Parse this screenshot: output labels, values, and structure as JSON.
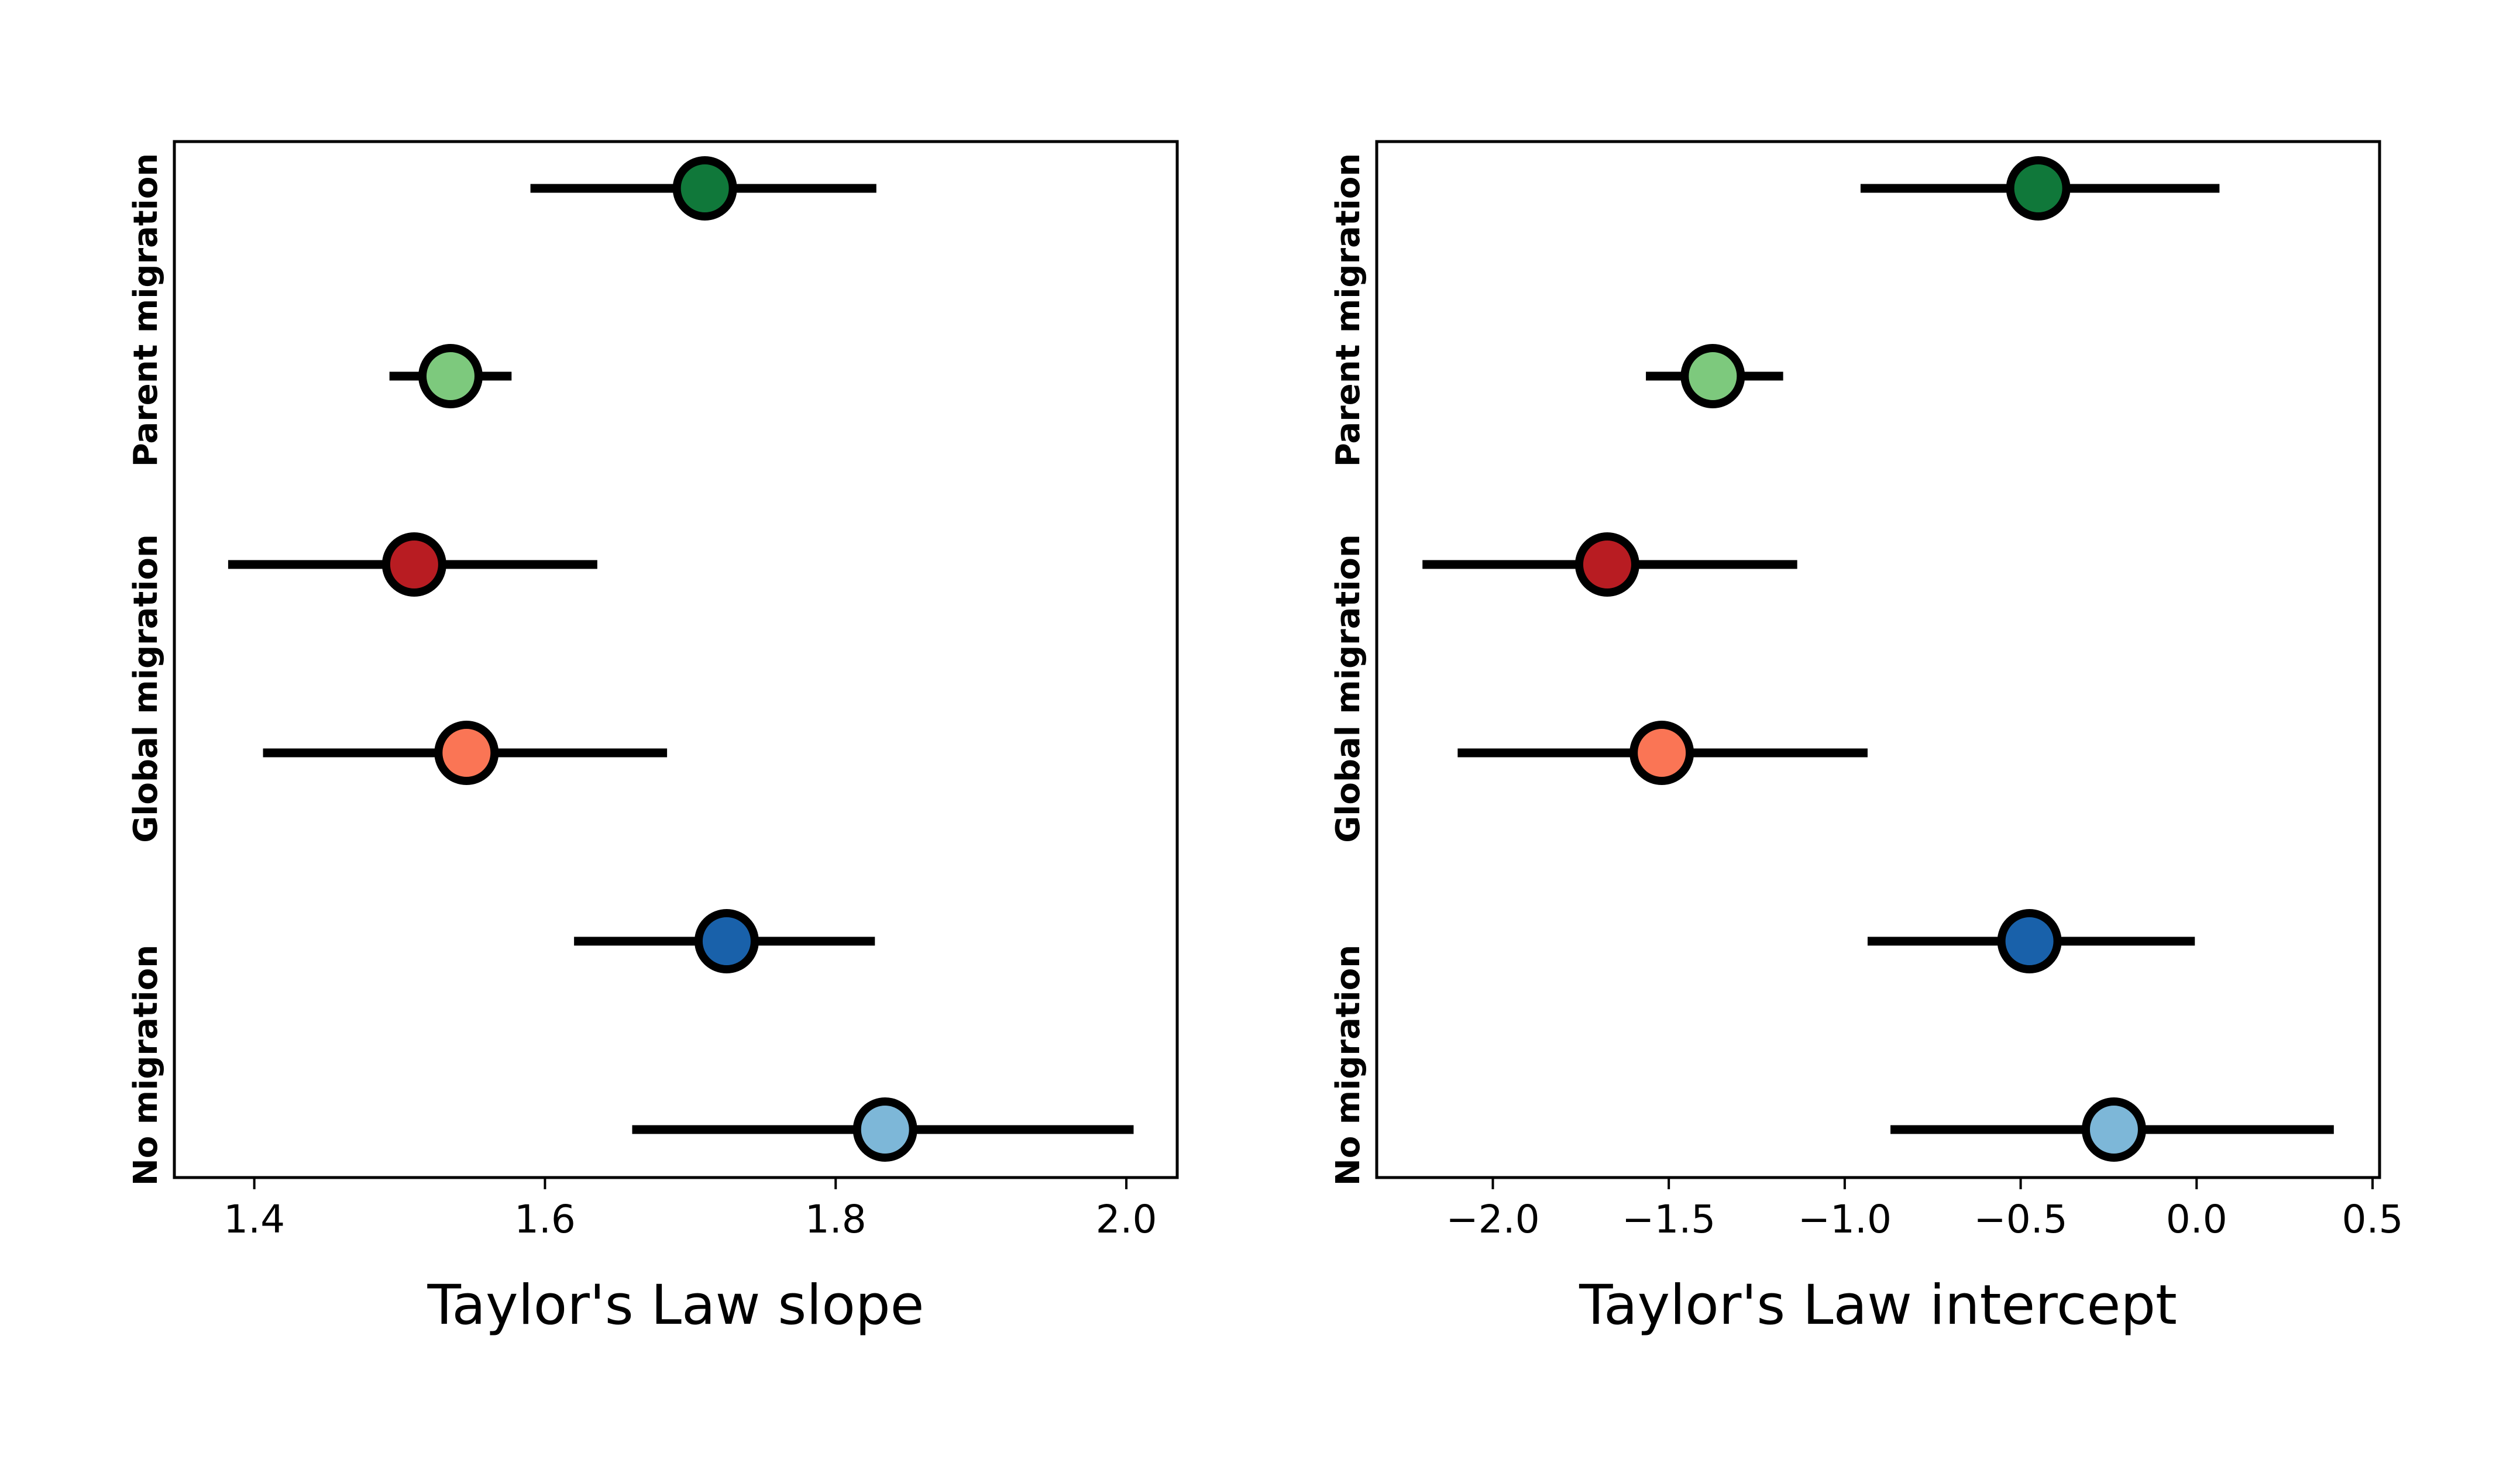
{
  "chart_data": [
    {
      "type": "errorbar",
      "xlabel": "Taylor's Law slope",
      "xlim": [
        1.345,
        2.035
      ],
      "xticks": [
        1.4,
        1.6,
        1.8,
        2.0
      ],
      "xtick_labels": [
        "1.4",
        "1.6",
        "1.8",
        "2.0"
      ],
      "group_labels": [
        "Parent migration",
        "Global migration",
        "No migration"
      ],
      "points": [
        {
          "color": "#10783a",
          "value": 1.71,
          "low": 1.59,
          "high": 1.828
        },
        {
          "color": "#7dc97d",
          "value": 1.535,
          "low": 1.493,
          "high": 1.577
        },
        {
          "color": "#b81c22",
          "value": 1.51,
          "low": 1.382,
          "high": 1.636
        },
        {
          "color": "#fa7555",
          "value": 1.546,
          "low": 1.406,
          "high": 1.684
        },
        {
          "color": "#1961aa",
          "value": 1.725,
          "low": 1.62,
          "high": 1.827
        },
        {
          "color": "#7db7d8",
          "value": 1.834,
          "low": 1.66,
          "high": 2.005
        }
      ]
    },
    {
      "type": "errorbar",
      "xlabel": "Taylor's Law intercept",
      "xlim": [
        -2.33,
        0.52
      ],
      "xticks": [
        -2.0,
        -1.5,
        -1.0,
        -0.5,
        0.0,
        0.5
      ],
      "xtick_labels": [
        "−2.0",
        "−1.5",
        "−1.0",
        "−0.5",
        "0.0",
        "0.5"
      ],
      "group_labels": [
        "Parent migration",
        "Global migration",
        "No migration"
      ],
      "points": [
        {
          "color": "#10783a",
          "value": -0.45,
          "low": -0.955,
          "high": 0.065
        },
        {
          "color": "#7dc97d",
          "value": -1.375,
          "low": -1.565,
          "high": -1.175
        },
        {
          "color": "#b81c22",
          "value": -1.675,
          "low": -2.2,
          "high": -1.135
        },
        {
          "color": "#fa7555",
          "value": -1.52,
          "low": -2.1,
          "high": -0.935
        },
        {
          "color": "#1961aa",
          "value": -0.475,
          "low": -0.935,
          "high": -0.005
        },
        {
          "color": "#7db7d8",
          "value": -0.235,
          "low": -0.87,
          "high": 0.39
        }
      ]
    }
  ]
}
